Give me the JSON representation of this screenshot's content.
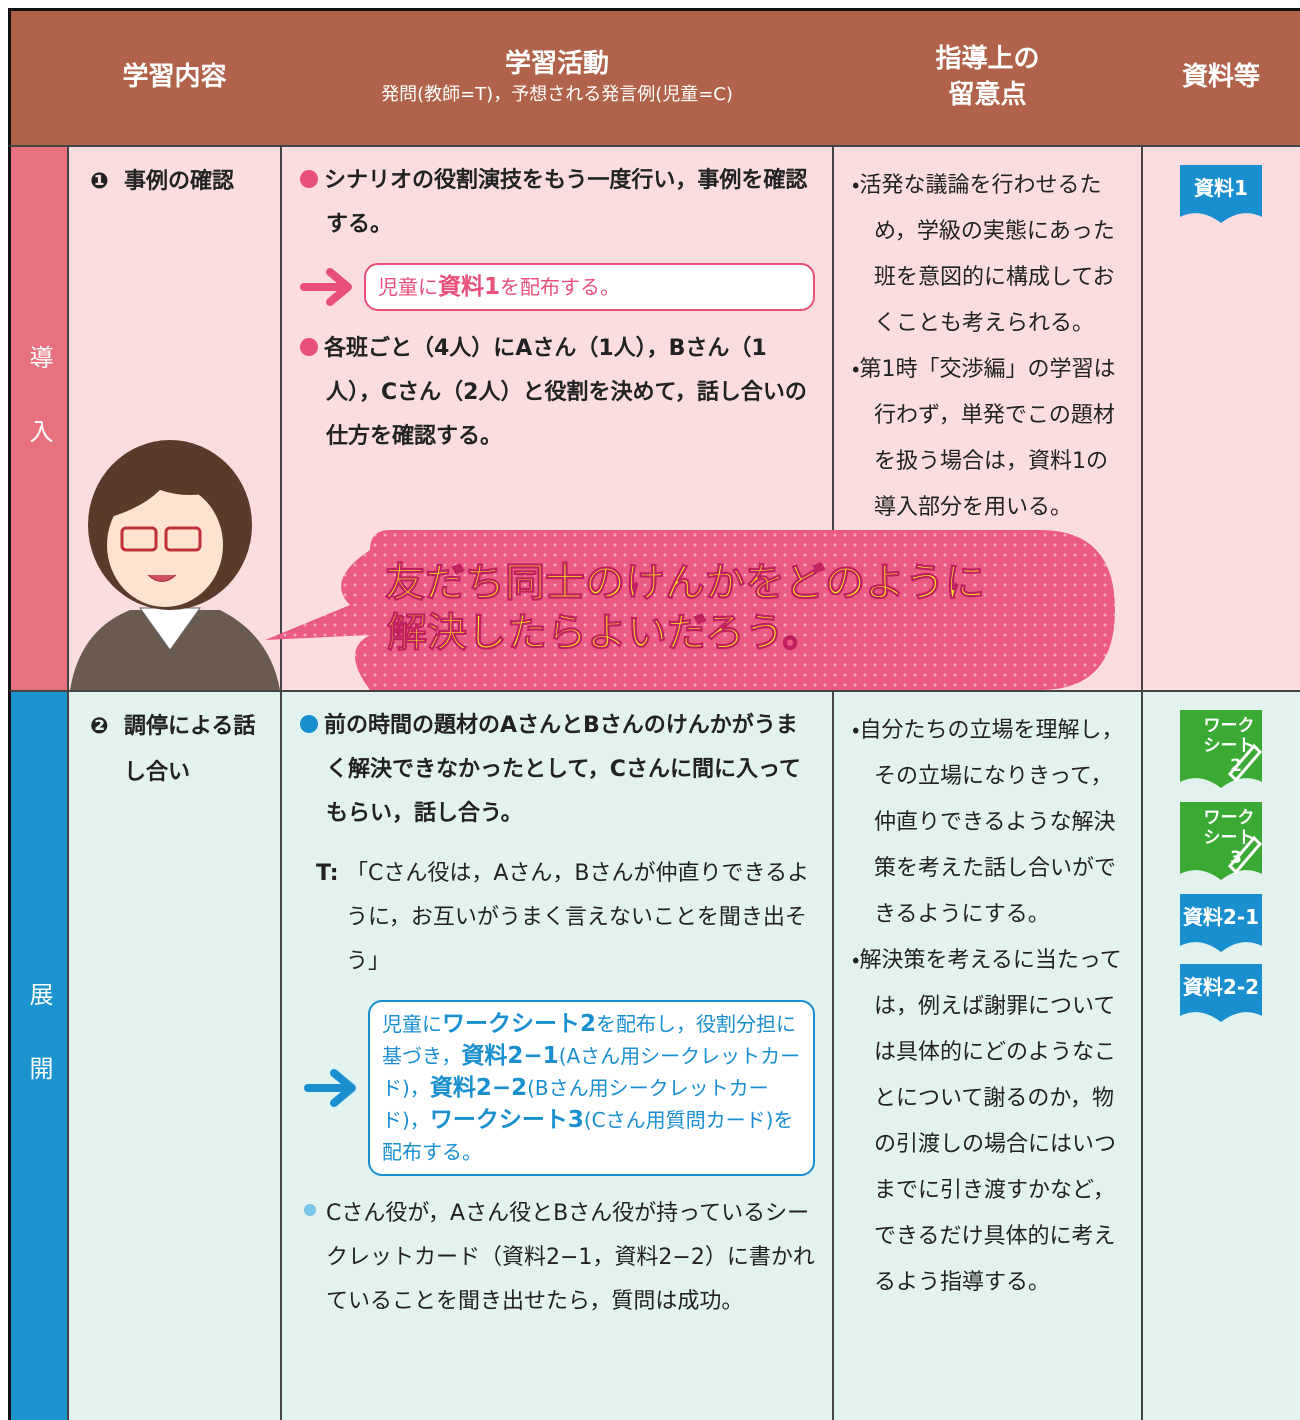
{
  "header": {
    "content": "学習内容",
    "activity_title": "学習活動",
    "activity_sub": "発問(教師=T)，予想される発言例(児童=C)",
    "notes_lines": [
      "指導上の",
      "留意点"
    ],
    "resources": "資料等"
  },
  "rows": [
    {
      "phase": "導入",
      "phase_color": "#e8717f",
      "background": "#fbdde0",
      "accent": "#e8507a",
      "content": {
        "num": "❶",
        "text": "事例の確認"
      },
      "activities": [
        {
          "type": "bullet",
          "text": "シナリオの役割演技をもう一度行い，事例を確認する。"
        },
        {
          "type": "box",
          "parts": [
            {
              "text": "児童に"
            },
            {
              "text": "資料1",
              "bold": true
            },
            {
              "text": "を配布する。"
            }
          ]
        },
        {
          "type": "bullet",
          "text": "各班ごと（4人）にAさん（1人），Bさん（1人），Cさん（2人）と役割を決めて，話し合いの仕方を確認する。"
        }
      ],
      "notes": [
        "・活発な議論を行わせるため，学級の実態にあった班を意図的に構成しておくことも考えられる。",
        "・第1時「交渉編」の学習は行わず，単発でこの題材を扱う場合は，資料1の導入部分を用いる。"
      ],
      "resources": [
        {
          "lines": [
            "資料1"
          ],
          "color": "#1a8fd0"
        }
      ],
      "bubble": [
        "友だち同士のけんかをどのように",
        "解決したらよいだろう。"
      ]
    },
    {
      "phase": "展開",
      "phase_color": "#1a93cf",
      "background": "#e2f2ee",
      "accent": "#1a8fd0",
      "content": {
        "num": "❷",
        "text": "調停による話し合い"
      },
      "activities": [
        {
          "type": "bullet",
          "text": "前の時間の題材のAさんとBさんのけんかがうまく解決できなかったとして，Cさんに間に入ってもらい，話し合う。"
        },
        {
          "type": "dialogue",
          "speaker": "T:",
          "text": "「Cさん役は，Aさん，Bさんが仲直りできるように，お互いがうまく言えないことを聞き出そう」"
        },
        {
          "type": "box",
          "parts": [
            {
              "text": "児童に"
            },
            {
              "text": "ワークシート2",
              "bold": true
            },
            {
              "text": "を配布し，役割分担に基づき，"
            },
            {
              "text": "資料2−1",
              "bold": true
            },
            {
              "text": "(Aさん用シークレットカード)，"
            },
            {
              "text": "資料2−2",
              "bold": true
            },
            {
              "text": "(Bさん用シークレットカード)，"
            },
            {
              "text": "ワークシート3",
              "bold": true
            },
            {
              "text": "(Cさん用質問カード)を配布する。"
            }
          ]
        },
        {
          "type": "point",
          "text": "Cさん役が，Aさん役とBさん役が持っているシークレットカード（資料2−1，資料2−2）に書かれていることを聞き出せたら，質問は成功。"
        }
      ],
      "notes": [
        "・自分たちの立場を理解し，その立場になりきって，仲直りできるような解決策を考えた話し合いができるようにする。",
        "・解決策を考えるに当たっては，例えば謝罪については具体的にどのようなことについて謝るのか，物の引渡しの場合にはいつまでに引き渡すかなど，できるだけ具体的に考えるよう指導する。"
      ],
      "resources": [
        {
          "lines": [
            "ワーク",
            "シート",
            "2"
          ],
          "color": "#3aaa35"
        },
        {
          "lines": [
            "ワーク",
            "シート",
            "3"
          ],
          "color": "#3aaa35"
        },
        {
          "lines": [
            "資料2-1"
          ],
          "color": "#1a8fd0"
        },
        {
          "lines": [
            "資料2-2"
          ],
          "color": "#1a8fd0"
        }
      ]
    }
  ]
}
